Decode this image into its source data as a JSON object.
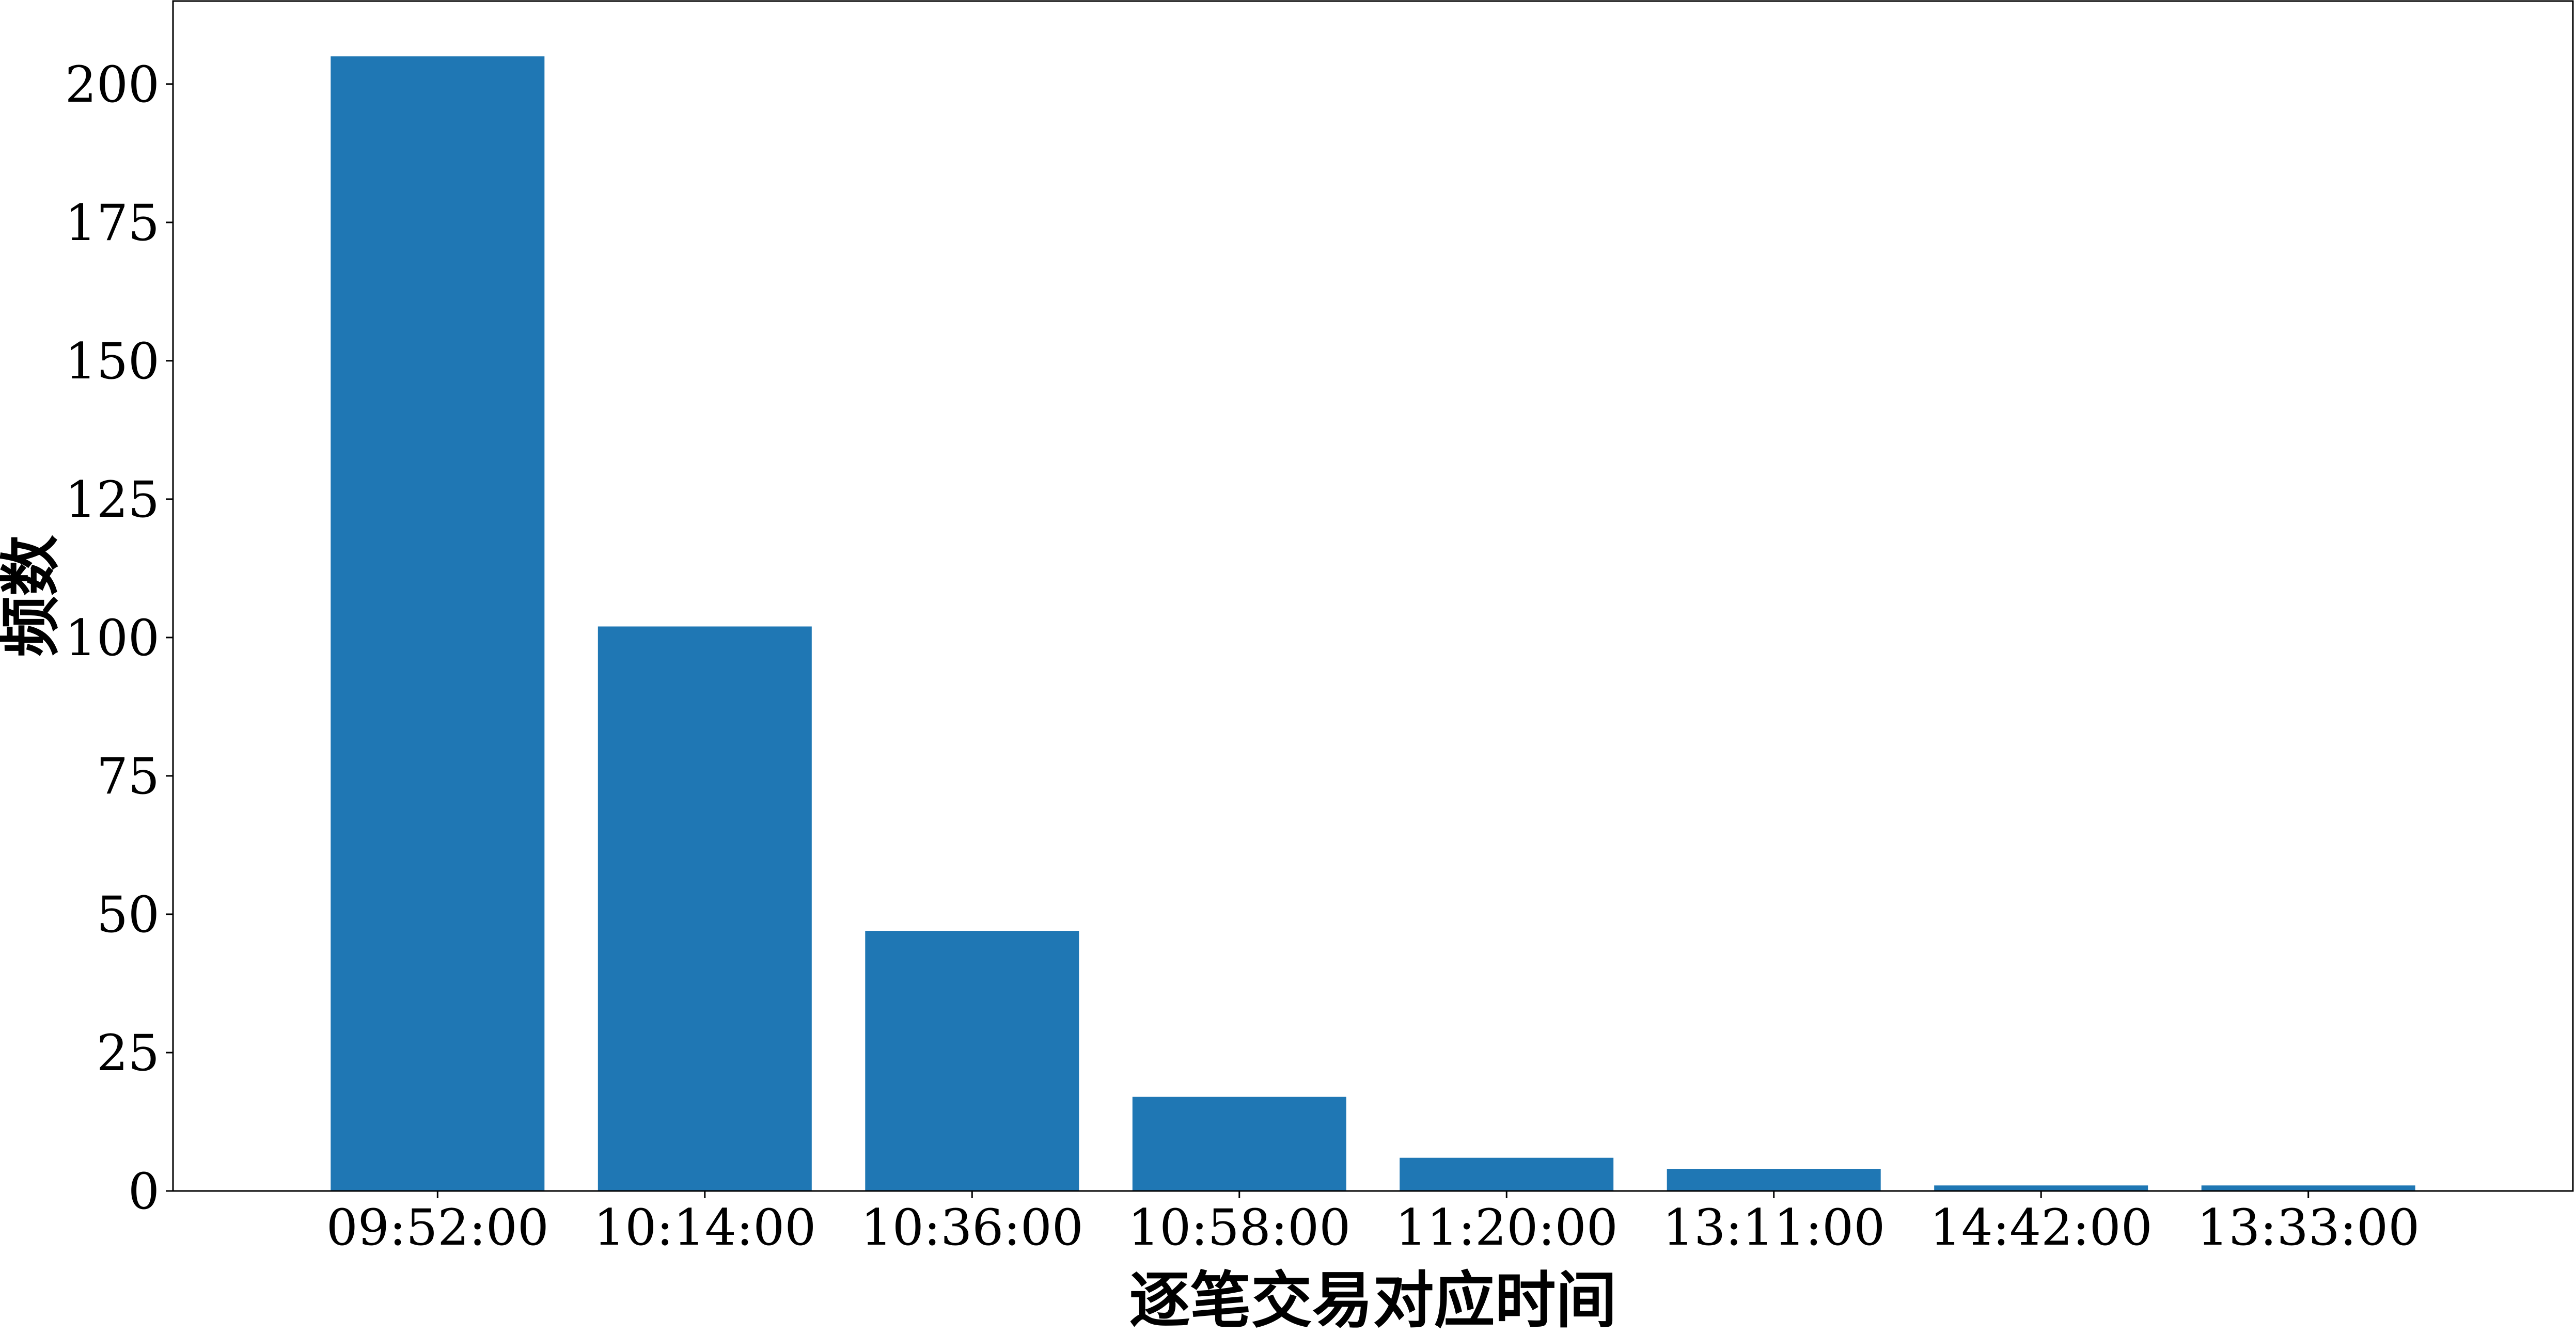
{
  "chart_data": {
    "type": "bar",
    "title": "",
    "xlabel": "逐笔交易对应时间",
    "ylabel": "频数",
    "categories": [
      "09:52:00",
      "10:14:00",
      "10:36:00",
      "10:58:00",
      "11:20:00",
      "13:11:00",
      "14:42:00",
      "13:33:00"
    ],
    "values": [
      205,
      102,
      47,
      17,
      6,
      4,
      1,
      1
    ],
    "ylim": [
      0,
      215
    ],
    "yticks": [
      0,
      25,
      50,
      75,
      100,
      125,
      150,
      175,
      200
    ],
    "bar_color": "#1f77b4",
    "grid": false,
    "legend": false
  }
}
